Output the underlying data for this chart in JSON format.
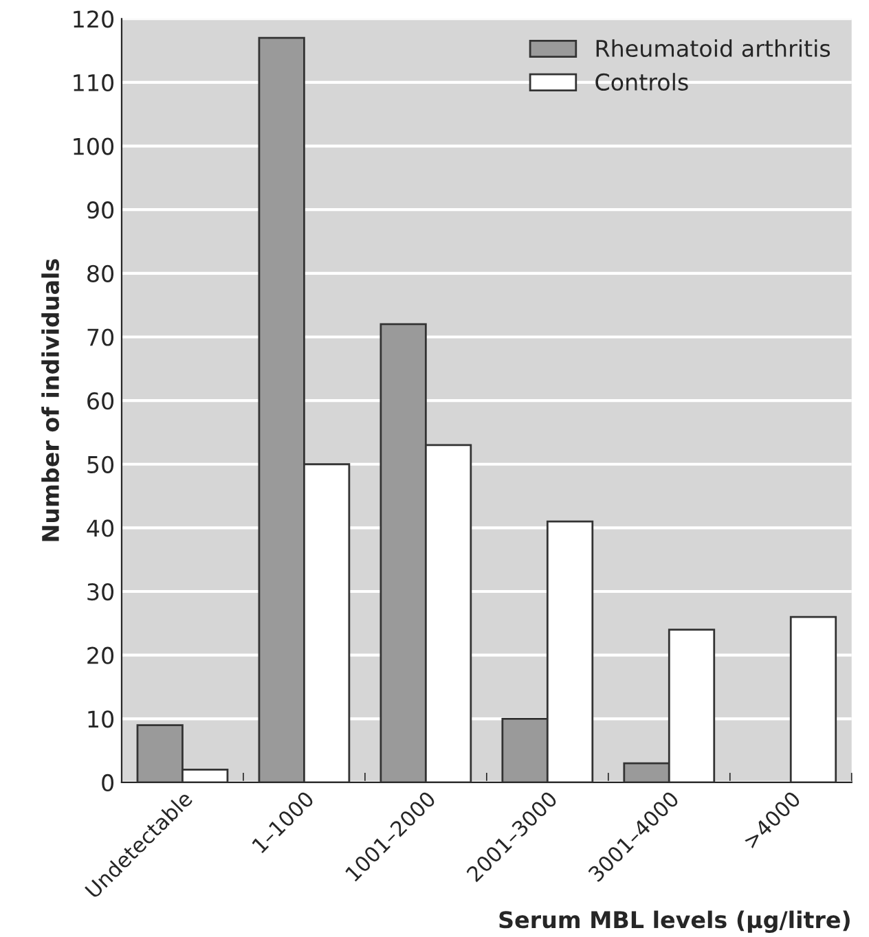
{
  "chart_data": {
    "type": "bar",
    "xlabel": "Serum MBL levels (µg/litre)",
    "ylabel": "Number of individuals",
    "categories": [
      "Undetectable",
      "1–1000",
      "1001–2000",
      "2001–3000",
      "3001–4000",
      ">4000"
    ],
    "series": [
      {
        "name": "Rheumatoid arthritis",
        "color": "#9a9a9a",
        "values": [
          9,
          117,
          72,
          10,
          3,
          null
        ]
      },
      {
        "name": "Controls",
        "color": "#ffffff",
        "values": [
          2,
          50,
          53,
          41,
          24,
          26
        ]
      }
    ],
    "ylim": [
      0,
      120
    ],
    "yticks": [
      0,
      10,
      20,
      30,
      40,
      50,
      60,
      70,
      80,
      90,
      100,
      110,
      120
    ],
    "grid": "y",
    "legend": "top right"
  }
}
